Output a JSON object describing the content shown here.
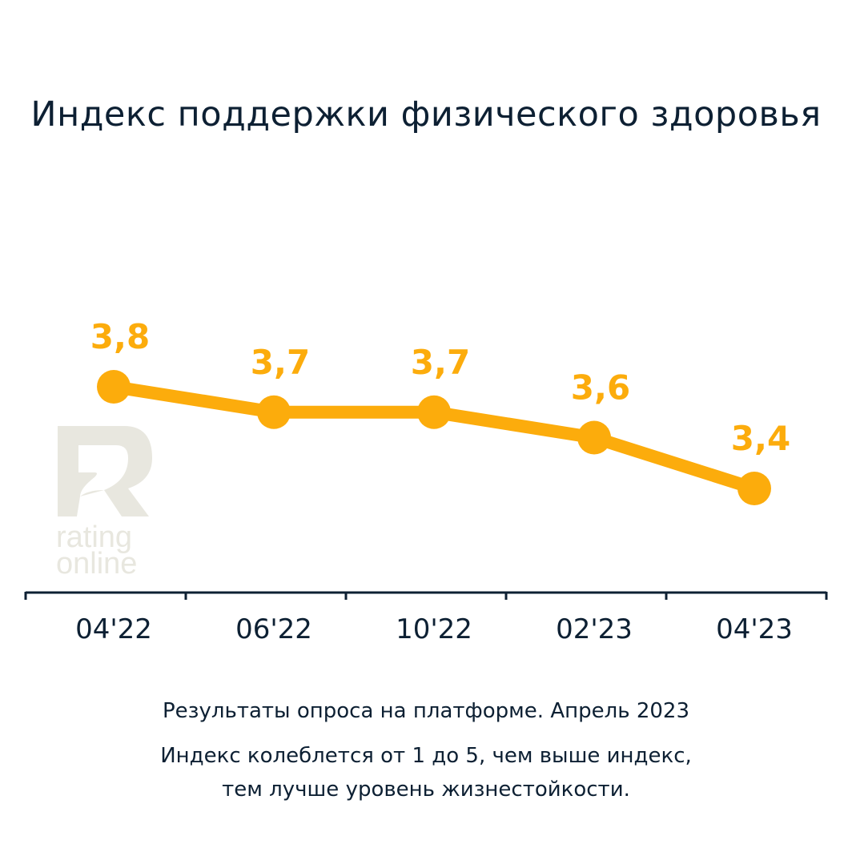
{
  "chart_data": {
    "type": "line",
    "title": "Индекс поддержки физического здоровья",
    "categories": [
      "04'22",
      "06'22",
      "10'22",
      "02'23",
      "04'23"
    ],
    "values": [
      3.8,
      3.7,
      3.7,
      3.6,
      3.4
    ],
    "data_labels": [
      "3,8",
      "3,7",
      "3,7",
      "3,6",
      "3,4"
    ],
    "xlabel": "",
    "ylabel": "",
    "grid": false,
    "color": "#fcac0c"
  },
  "logo": {
    "text": "rating online"
  },
  "footer": {
    "line1": "Результаты опроса на платформе. Апрель 2023",
    "line2": "Индекс колеблется от 1 до 5, чем выше индекс,",
    "line3": "тем лучше уровень жизнестойкости."
  }
}
